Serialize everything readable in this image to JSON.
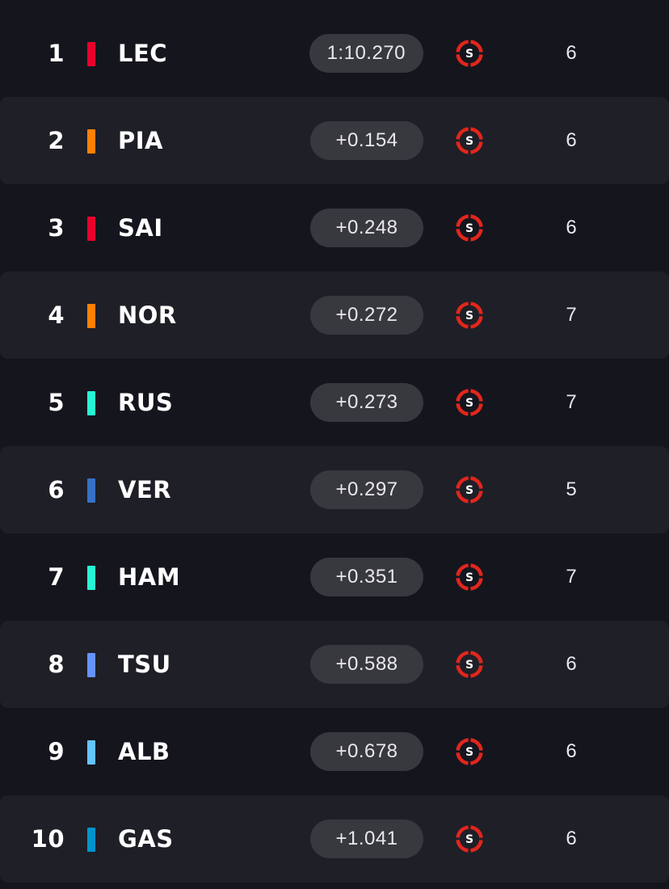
{
  "colors": {
    "background": "#15151e",
    "row_alt": "#1f1f27",
    "pill": "#38383f",
    "soft_tyre": "#e1261c"
  },
  "rows": [
    {
      "position": "1",
      "driver": "LEC",
      "team_color": "#e8002d",
      "time": "1:10.270",
      "tyre": "S",
      "tyre_icon": "soft-tyre-icon",
      "laps": "6"
    },
    {
      "position": "2",
      "driver": "PIA",
      "team_color": "#ff8000",
      "time": "+0.154",
      "tyre": "S",
      "tyre_icon": "soft-tyre-icon",
      "laps": "6"
    },
    {
      "position": "3",
      "driver": "SAI",
      "team_color": "#e8002d",
      "time": "+0.248",
      "tyre": "S",
      "tyre_icon": "soft-tyre-icon",
      "laps": "6"
    },
    {
      "position": "4",
      "driver": "NOR",
      "team_color": "#ff8000",
      "time": "+0.272",
      "tyre": "S",
      "tyre_icon": "soft-tyre-icon",
      "laps": "7"
    },
    {
      "position": "5",
      "driver": "RUS",
      "team_color": "#27f4d2",
      "time": "+0.273",
      "tyre": "S",
      "tyre_icon": "soft-tyre-icon",
      "laps": "7"
    },
    {
      "position": "6",
      "driver": "VER",
      "team_color": "#3671c6",
      "time": "+0.297",
      "tyre": "S",
      "tyre_icon": "soft-tyre-icon",
      "laps": "5"
    },
    {
      "position": "7",
      "driver": "HAM",
      "team_color": "#27f4d2",
      "time": "+0.351",
      "tyre": "S",
      "tyre_icon": "soft-tyre-icon",
      "laps": "7"
    },
    {
      "position": "8",
      "driver": "TSU",
      "team_color": "#6692ff",
      "time": "+0.588",
      "tyre": "S",
      "tyre_icon": "soft-tyre-icon",
      "laps": "6"
    },
    {
      "position": "9",
      "driver": "ALB",
      "team_color": "#64c4ff",
      "time": "+0.678",
      "tyre": "S",
      "tyre_icon": "soft-tyre-icon",
      "laps": "6"
    },
    {
      "position": "10",
      "driver": "GAS",
      "team_color": "#0093cc",
      "time": "+1.041",
      "tyre": "S",
      "tyre_icon": "soft-tyre-icon",
      "laps": "6"
    }
  ]
}
